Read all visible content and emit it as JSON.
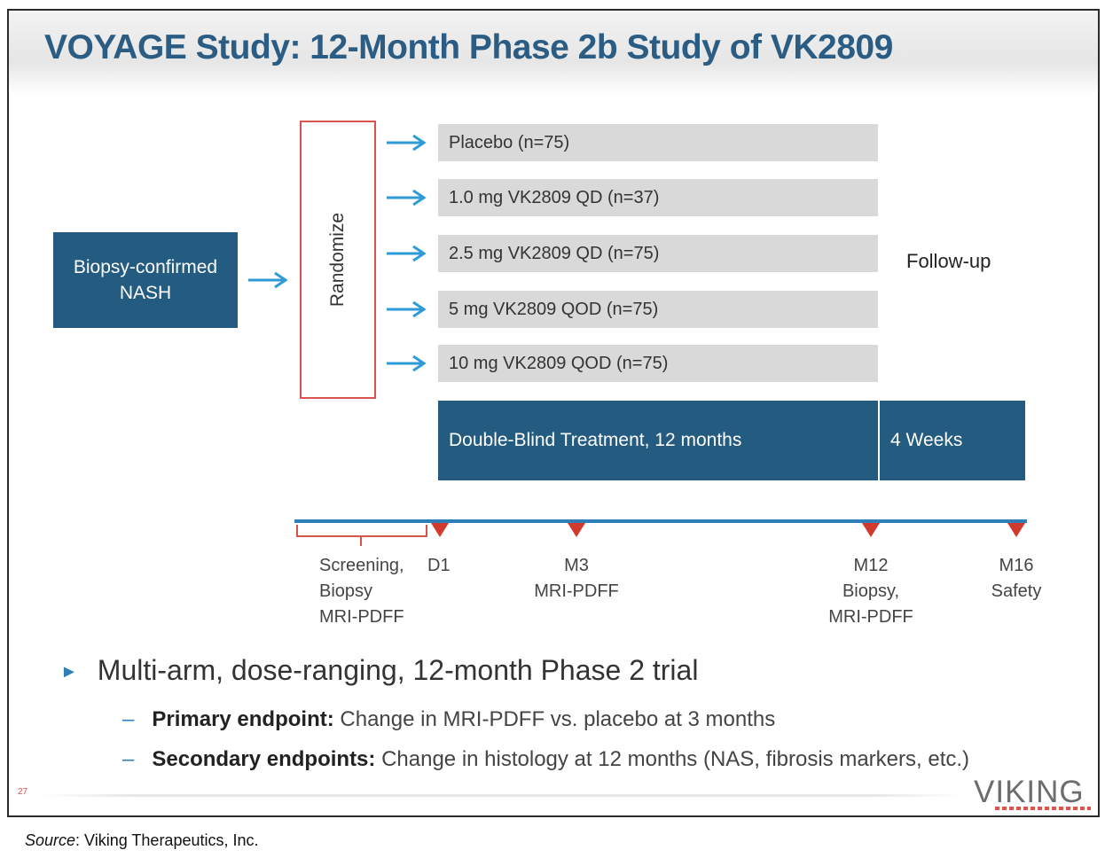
{
  "title": "VOYAGE Study: 12-Month Phase 2b Study of VK2809",
  "population": {
    "line1": "Biopsy-confirmed",
    "line2": "NASH"
  },
  "randomize_label": "Randomize",
  "arms": [
    "Placebo (n=75)",
    "1.0 mg VK2809 QD (n=37)",
    "2.5 mg VK2809 QD (n=75)",
    "5 mg VK2809 QOD (n=75)",
    "10 mg VK2809 QOD (n=75)"
  ],
  "follow_up_label": "Follow-up",
  "treatment_bar": "Double-Blind Treatment, 12 months",
  "followup_bar": "4 Weeks",
  "timeline": {
    "screening": [
      "Screening,",
      "Biopsy",
      "MRI-PDFF"
    ],
    "d1": "D1",
    "m3": [
      "M3",
      "MRI-PDFF"
    ],
    "m12": [
      "M12",
      "Biopsy,",
      "MRI-PDFF"
    ],
    "m16": [
      "M16",
      "Safety"
    ]
  },
  "bullets": {
    "main": "Multi-arm, dose-ranging, 12-month Phase 2 trial",
    "primary_label": "Primary endpoint:",
    "primary_text": " Change in MRI-PDFF vs. placebo at 3 months",
    "secondary_label": "Secondary endpoints:",
    "secondary_text": " Change in histology at 12 months (NAS, fibrosis markers, etc.)"
  },
  "page_number": "27",
  "logo": "VIKING",
  "source": {
    "label": "Source",
    "text": ": Viking Therapeutics, Inc."
  },
  "colors": {
    "accent_blue": "#245b80",
    "title_blue": "#2b5c84",
    "arrow_blue": "#2e9bd6",
    "marker_red": "#d03a2f",
    "arm_gray": "#d9d9d9"
  }
}
